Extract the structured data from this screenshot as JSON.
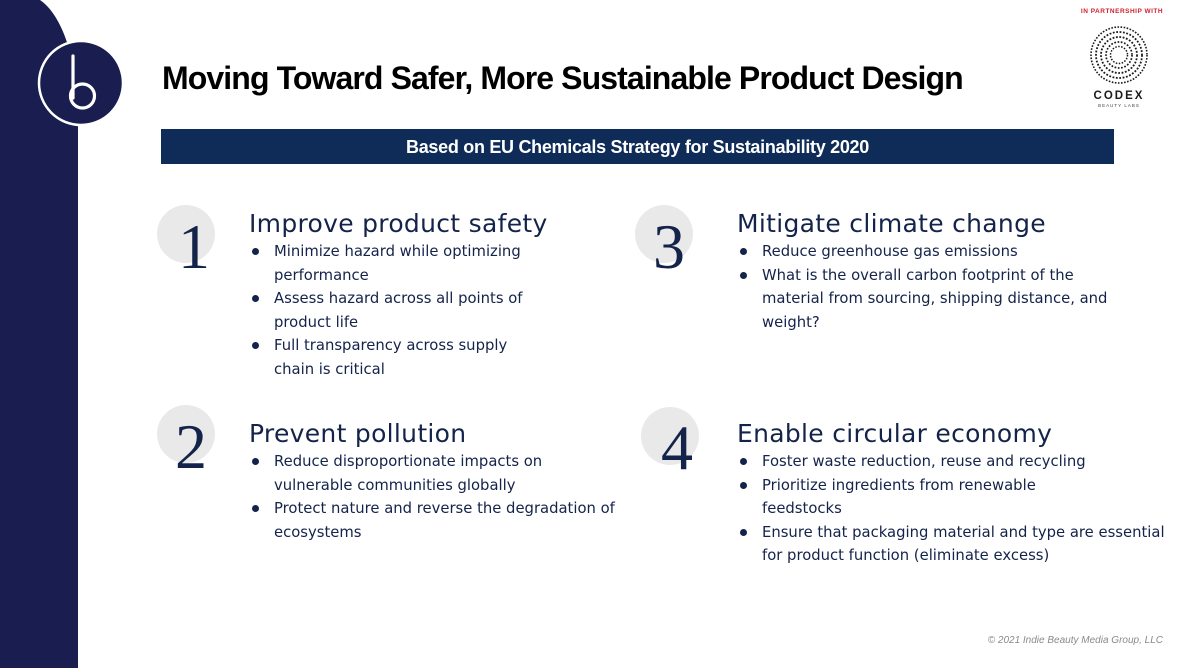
{
  "branding": {
    "partner_text": "IN PARTNERSHIP WITH",
    "codex_name": "CODEX",
    "codex_subtitle": "BEAUTY LABS",
    "colors": {
      "navy": "#1a1d4f",
      "banner": "#0e2c57",
      "accent_red": "#d0202e",
      "text": "#14234a"
    }
  },
  "title": "Moving Toward Safer, More Sustainable Product Design",
  "banner": "Based on EU Chemicals Strategy for Sustainability 2020",
  "sections": [
    {
      "number": "1",
      "heading": "Improve product safety",
      "bullets": [
        "Minimize hazard while optimizing performance",
        "Assess hazard across all points of product life",
        "Full transparency across supply chain is critical"
      ]
    },
    {
      "number": "2",
      "heading": "Prevent pollution",
      "bullets": [
        "Reduce disproportionate impacts on vulnerable communities globally",
        "Protect nature and reverse the degradation of ecosystems"
      ]
    },
    {
      "number": "3",
      "heading": "Mitigate climate change",
      "bullets": [
        "Reduce greenhouse gas emissions",
        "What is the overall carbon footprint of the material from sourcing, shipping distance, and weight?"
      ]
    },
    {
      "number": "4",
      "heading": "Enable circular economy",
      "bullets": [
        "Foster waste reduction, reuse and recycling",
        "Prioritize ingredients from renewable feedstocks",
        "Ensure that packaging material and type are essential for product function (eliminate excess)"
      ]
    }
  ],
  "footer": {
    "copyright": "© 2021 Indie Beauty Media Group, LLC"
  }
}
